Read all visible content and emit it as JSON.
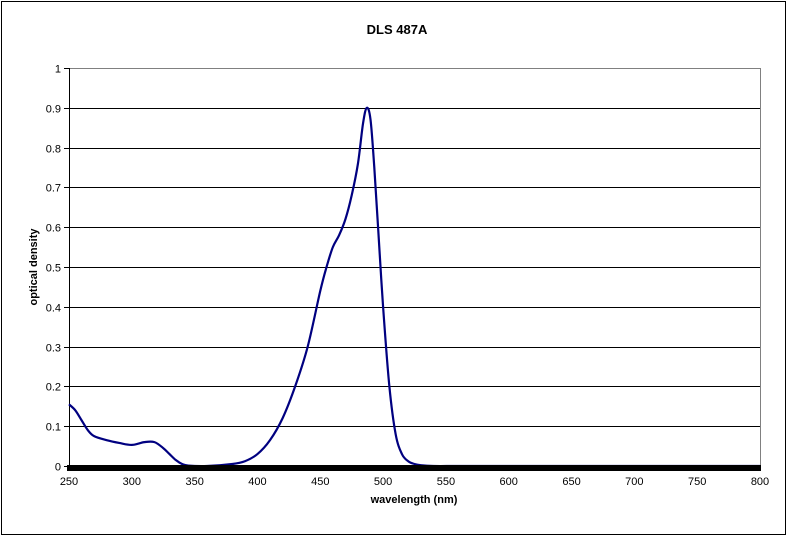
{
  "chart_data": {
    "type": "line",
    "title": "DLS 487A",
    "xlabel": "wavelength (nm)",
    "ylabel": "optical density",
    "xlim": [
      250,
      800
    ],
    "ylim": [
      0,
      1
    ],
    "xticks": [
      250,
      300,
      350,
      400,
      450,
      500,
      550,
      600,
      650,
      700,
      750,
      800
    ],
    "xtick_labels": [
      "250",
      "300",
      "350",
      "400",
      "450",
      "500",
      "550",
      "600",
      "650",
      "700",
      "750",
      "800"
    ],
    "yticks": [
      0,
      0.1,
      0.2,
      0.3,
      0.4,
      0.5,
      0.6,
      0.7,
      0.8,
      0.9,
      1
    ],
    "ytick_labels": [
      "0",
      "0.1",
      "0.2",
      "0.3",
      "0.4",
      "0.5",
      "0.6",
      "0.7",
      "0.8",
      "0.9",
      "1"
    ],
    "grid": {
      "horizontal": true,
      "vertical": false
    },
    "legend": null,
    "series": [
      {
        "name": "DLS 487A",
        "color": "#000080",
        "x": [
          250,
          255,
          260,
          265,
          270,
          280,
          290,
          300,
          310,
          318,
          325,
          330,
          335,
          340,
          345,
          360,
          380,
          390,
          400,
          410,
          420,
          430,
          440,
          450,
          455,
          460,
          465,
          470,
          475,
          480,
          484,
          487,
          490,
          493,
          496,
          500,
          505,
          510,
          515,
          520,
          525,
          530,
          540,
          560,
          600,
          650,
          700,
          750,
          800
        ],
        "y": [
          0.155,
          0.14,
          0.115,
          0.09,
          0.075,
          0.065,
          0.058,
          0.053,
          0.06,
          0.06,
          0.045,
          0.03,
          0.015,
          0.005,
          0.001,
          0.0,
          0.005,
          0.012,
          0.03,
          0.065,
          0.12,
          0.2,
          0.3,
          0.44,
          0.5,
          0.55,
          0.58,
          0.62,
          0.68,
          0.76,
          0.86,
          0.9,
          0.87,
          0.75,
          0.6,
          0.4,
          0.2,
          0.08,
          0.03,
          0.012,
          0.005,
          0.002,
          0.0,
          0.0,
          0.0,
          0.0,
          0.0,
          0.0,
          0.0
        ]
      }
    ]
  },
  "colors": {
    "series_line": "#000080",
    "gridline": "#000000",
    "plot_border": "#808080",
    "baseline": "#000000"
  }
}
